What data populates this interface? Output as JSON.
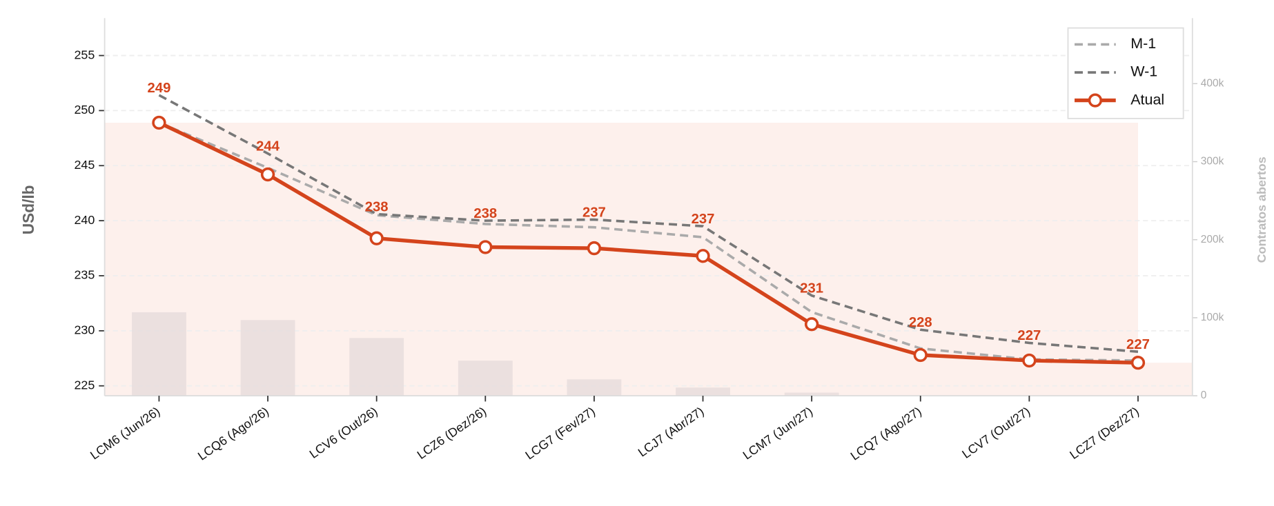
{
  "chart_data": {
    "type": "line",
    "y_label": "USd/lb",
    "y2_label": "Contratos abertos",
    "categories": [
      "LCM6 (Jun/26)",
      "LCQ6 (Ago/26)",
      "LCV6 (Out/26)",
      "LCZ6 (Dez/26)",
      "LCG7 (Fev/27)",
      "LCJ7 (Abr/27)",
      "LCM7 (Jun/27)",
      "LCQ7 (Ago/27)",
      "LCV7 (Out/27)",
      "LCZ7 (Dez/27)"
    ],
    "series": [
      {
        "name": "M-1",
        "color": "#aaaaaa",
        "dash": true,
        "values": [
          248.9,
          244.8,
          240.5,
          239.7,
          239.4,
          238.5,
          231.7,
          228.4,
          227.4,
          227.3
        ]
      },
      {
        "name": "W-1",
        "color": "#777777",
        "dash": true,
        "values": [
          251.4,
          246.1,
          240.6,
          240.0,
          240.1,
          239.5,
          233.2,
          230.1,
          228.9,
          228.1
        ]
      },
      {
        "name": "Atual",
        "color": "#d4441c",
        "markers": true,
        "values": [
          248.9,
          244.2,
          238.4,
          237.6,
          237.5,
          236.8,
          230.6,
          227.8,
          227.3,
          227.1
        ],
        "value_labels": [
          "249",
          "244",
          "238",
          "238",
          "237",
          "237",
          "231",
          "228",
          "227",
          "227"
        ]
      },
      {
        "name": "Contratos abertos",
        "type": "bar",
        "axis": "y2",
        "color": "#e6dcdc",
        "values": [
          107000,
          97000,
          74000,
          45000,
          21000,
          10500,
          4000,
          0,
          0,
          0
        ]
      }
    ],
    "ylim": [
      224.1,
      258.4
    ],
    "yticks": [
      225,
      230,
      235,
      240,
      245,
      250,
      255
    ],
    "y2lim": [
      0,
      484000
    ],
    "y2ticks": [
      {
        "value": 0,
        "label": "0"
      },
      {
        "value": 100000,
        "label": "100k"
      },
      {
        "value": 200000,
        "label": "200k"
      },
      {
        "value": 300000,
        "label": "300k"
      },
      {
        "value": 400000,
        "label": "400k"
      }
    ],
    "grid": true,
    "legend": "upper right"
  }
}
